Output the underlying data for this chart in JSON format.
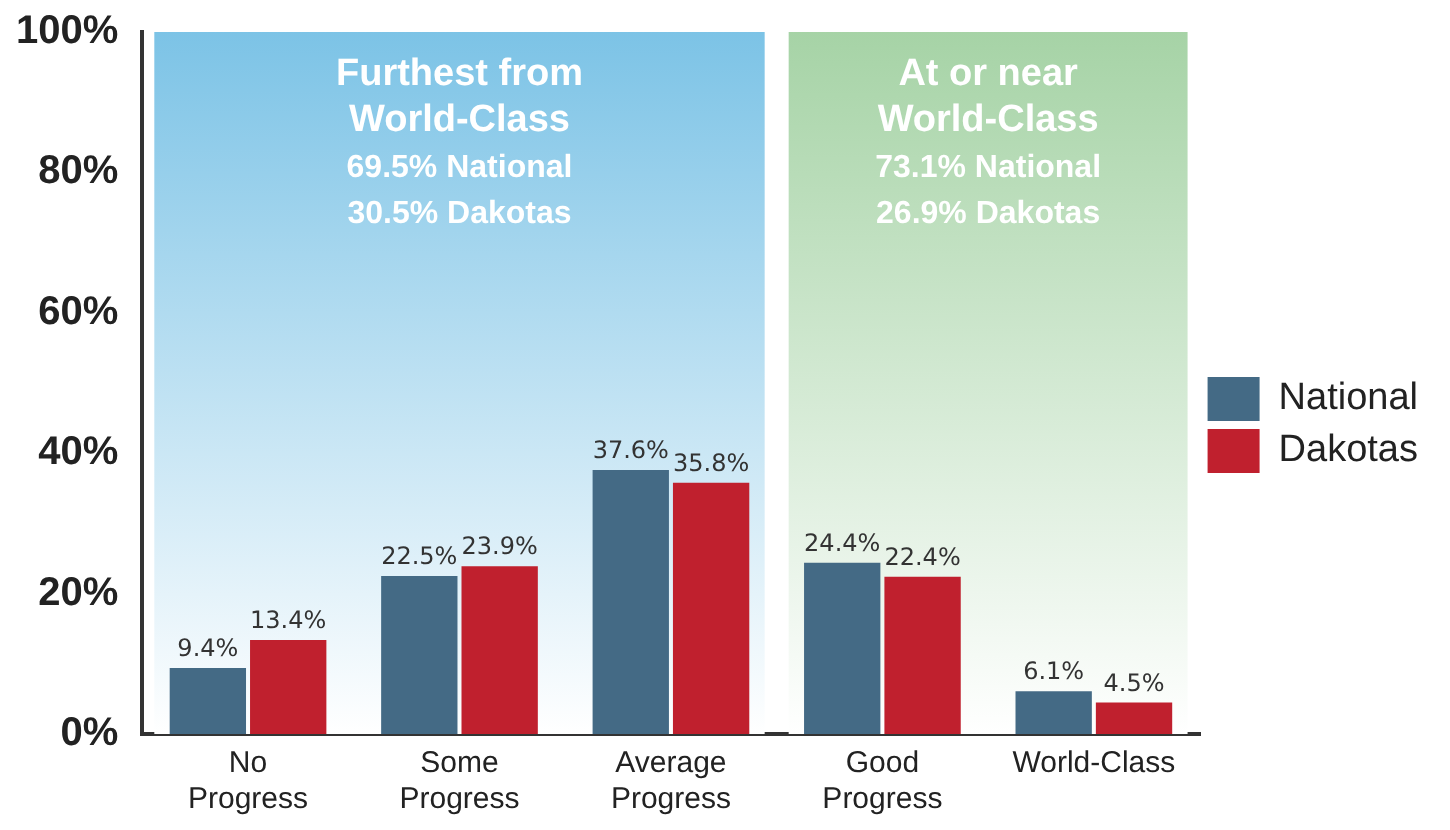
{
  "chart_data": {
    "type": "bar",
    "categories": [
      "No Progress",
      "Some Progress",
      "Average Progress",
      "Good Progress",
      "World-Class"
    ],
    "series": [
      {
        "name": "National",
        "color": "#446a85",
        "values": [
          9.4,
          22.5,
          37.6,
          24.4,
          6.1
        ],
        "value_labels": [
          "9.4%",
          "22.5%",
          "37.6%",
          "24.4%",
          "6.1%"
        ]
      },
      {
        "name": "Dakotas",
        "color": "#c0202e",
        "values": [
          13.4,
          23.9,
          35.8,
          22.4,
          4.5
        ],
        "value_labels": [
          "13.4%",
          "23.9%",
          "35.8%",
          "22.4%",
          "4.5%"
        ]
      }
    ],
    "ylim": [
      0,
      100
    ],
    "yticks": [
      {
        "value": 0,
        "label": "0%"
      },
      {
        "value": 20,
        "label": "20%"
      },
      {
        "value": 40,
        "label": "40%"
      },
      {
        "value": 60,
        "label": "60%"
      },
      {
        "value": 80,
        "label": "80%"
      },
      {
        "value": 100,
        "label": "100%"
      }
    ],
    "bands": [
      {
        "axis": "x",
        "from": "No Progress",
        "to": "Average Progress",
        "label": "Furthest from\nWorld-Class\n69.5% National\n30.5% Dakotas",
        "color": "#7cc3e6"
      },
      {
        "axis": "x",
        "from": "Good Progress",
        "to": "World-Class",
        "label": "At or near\nWorld-Class\n73.1% National\n26.9% Dakotas",
        "color": "#a6d3a6"
      }
    ],
    "grid": false,
    "legend": "right"
  }
}
